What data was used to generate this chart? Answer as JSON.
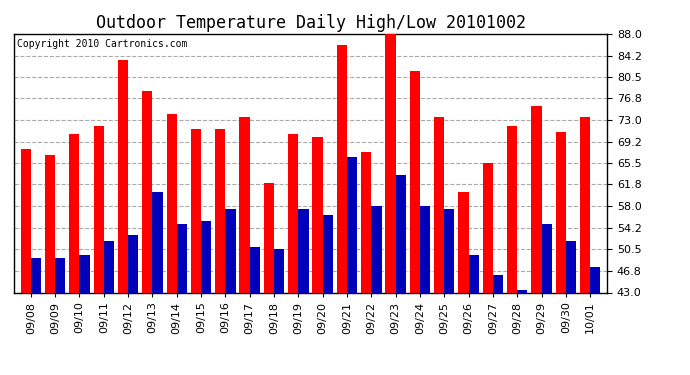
{
  "title": "Outdoor Temperature Daily High/Low 20101002",
  "copyright": "Copyright 2010 Cartronics.com",
  "dates": [
    "09/08",
    "09/09",
    "09/10",
    "09/11",
    "09/12",
    "09/13",
    "09/14",
    "09/15",
    "09/16",
    "09/17",
    "09/18",
    "09/19",
    "09/20",
    "09/21",
    "09/22",
    "09/23",
    "09/24",
    "09/25",
    "09/26",
    "09/27",
    "09/28",
    "09/29",
    "09/30",
    "10/01"
  ],
  "highs": [
    68.0,
    67.0,
    70.5,
    72.0,
    83.5,
    78.0,
    74.0,
    71.5,
    71.5,
    73.5,
    62.0,
    70.5,
    70.0,
    86.0,
    67.5,
    88.5,
    81.5,
    73.5,
    60.5,
    65.5,
    72.0,
    75.5,
    71.0,
    73.5
  ],
  "lows": [
    49.0,
    49.0,
    49.5,
    52.0,
    53.0,
    60.5,
    55.0,
    55.5,
    57.5,
    51.0,
    50.5,
    57.5,
    56.5,
    66.5,
    58.0,
    63.5,
    58.0,
    57.5,
    49.5,
    46.0,
    43.5,
    55.0,
    52.0,
    47.5
  ],
  "high_color": "#ff0000",
  "low_color": "#0000bb",
  "bg_color": "#ffffff",
  "grid_color": "#aaaaaa",
  "ylim_min": 43.0,
  "ylim_max": 88.0,
  "yticks": [
    43.0,
    46.8,
    50.5,
    54.2,
    58.0,
    61.8,
    65.5,
    69.2,
    73.0,
    76.8,
    80.5,
    84.2,
    88.0
  ],
  "bar_width": 0.42,
  "title_fontsize": 12,
  "copyright_fontsize": 7,
  "tick_fontsize": 8,
  "ylabel_fontsize": 9
}
